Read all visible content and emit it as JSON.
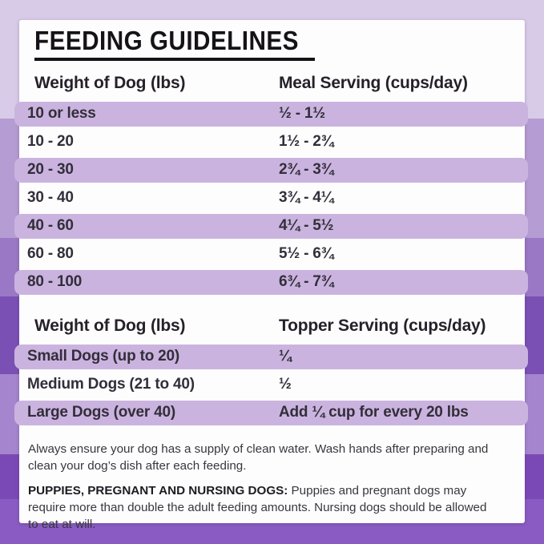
{
  "title": "FEEDING GUIDELINES",
  "colors": {
    "band_purple": "#cab4df",
    "card_white": "#fdfdfe",
    "background_steps": [
      "#d8cbe7",
      "#b59cd2",
      "#9b78c6",
      "#7b50b4",
      "#a585ce",
      "#7b49b6",
      "#8a5cc3"
    ],
    "text_dark": "#262129"
  },
  "meal_table": {
    "col1_header": "Weight of Dog (lbs)",
    "col2_header": "Meal Serving (cups/day)",
    "rows": [
      {
        "weight": "10 or less",
        "serving": "½ - 1½"
      },
      {
        "weight": "10 - 20",
        "serving": "1½ - 2¾"
      },
      {
        "weight": "20 - 30",
        "serving": "2¾ - 3¾"
      },
      {
        "weight": "30 - 40",
        "serving": "3¾ - 4¼"
      },
      {
        "weight": "40 - 60",
        "serving": "4¼ - 5½"
      },
      {
        "weight": "60 - 80",
        "serving": "5½ - 6¾"
      },
      {
        "weight": "80 - 100",
        "serving": "6¾ - 7¾"
      }
    ]
  },
  "topper_table": {
    "col1_header": "Weight of Dog (lbs)",
    "col2_header": "Topper Serving (cups/day)",
    "rows": [
      {
        "weight": "Small Dogs (up to 20)",
        "serving": "¼"
      },
      {
        "weight": "Medium Dogs (21 to 40)",
        "serving": "½"
      },
      {
        "weight": "Large Dogs (over 40)",
        "serving": "Add ¼ cup for every 20 lbs"
      }
    ]
  },
  "notes": {
    "water": "Always ensure your dog has a supply of clean water. Wash hands after preparing and clean your dog’s dish after each feeding.",
    "puppies_label": "PUPPIES, PREGNANT AND NURSING DOGS:",
    "puppies_text": " Puppies and pregnant dogs may require more than double the adult feeding amounts. Nursing dogs should be allowed to eat at will."
  }
}
